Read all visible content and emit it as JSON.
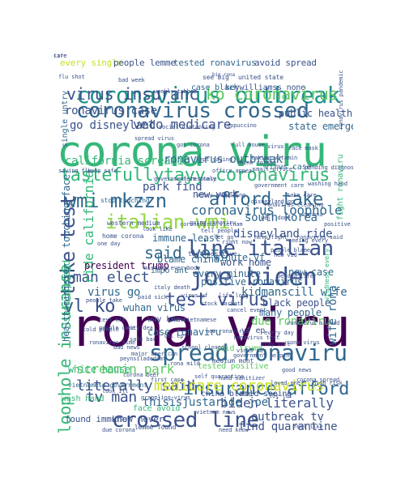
{
  "palette": {
    "dark_purple": "#440154",
    "indigo": "#3b528b",
    "blue": "#31688e",
    "teal": "#21918c",
    "green": "#35b779",
    "light_green": "#5ec962",
    "lime": "#90d743",
    "yellow": "#c8e020"
  },
  "words": [
    {
      "text": "rona viru",
      "color": "#440154"
    },
    {
      "text": "corona viru",
      "color": "#35b779"
    },
    {
      "text": "coronavirus outbreak",
      "color": "#21918c"
    },
    {
      "text": "coronavirus crossed",
      "color": "#31688e"
    },
    {
      "text": "joe biden",
      "color": "#3b528b"
    },
    {
      "text": "spread ronaviru",
      "color": "#31688e"
    },
    {
      "text": "crossed line",
      "color": "#3b528b"
    },
    {
      "text": "tastefullytayy coronavirus",
      "color": "#35b779"
    },
    {
      "text": "wmi mkzzn",
      "color": "#31688e"
    },
    {
      "text": "afford take",
      "color": "#31688e"
    },
    {
      "text": "italian wmi",
      "color": "#90d743"
    },
    {
      "text": "line italian",
      "color": "#3b528b"
    },
    {
      "text": "test virus",
      "color": "#3b528b"
    },
    {
      "text": "take test",
      "color": "#3b528b"
    },
    {
      "text": "loophole insurance",
      "color": "#35b779"
    },
    {
      "text": "insurance afford",
      "color": "#31688e"
    },
    {
      "text": "vl ko",
      "color": "#3b528b"
    },
    {
      "text": "said veto",
      "color": "#31688e"
    },
    {
      "text": "virus insuranc",
      "color": "#3b528b"
    },
    {
      "text": "ko coronavirus",
      "color": "#5ec962"
    },
    {
      "text": "coronavirus loophole",
      "color": "#31688e"
    },
    {
      "text": "literally said",
      "color": "#3b528b"
    },
    {
      "text": "medicare coronavirus",
      "color": "#c8e020"
    },
    {
      "text": "biden literally",
      "color": "#3b528b"
    },
    {
      "text": "thisisjustaride joe",
      "color": "#31688e"
    },
    {
      "text": "veto medicare",
      "color": "#3b528b"
    },
    {
      "text": "go disneyland",
      "color": "#3b528b"
    },
    {
      "text": "california screamin",
      "color": "#35b779"
    },
    {
      "text": "ronavirus outbreak",
      "color": "#31688e"
    },
    {
      "text": "disneyland ride",
      "color": "#3b528b"
    },
    {
      "text": "man elect",
      "color": "#3b528b"
    },
    {
      "text": "virus go",
      "color": "#31688e"
    },
    {
      "text": "screamin park",
      "color": "#5ec962"
    },
    {
      "text": "tv man",
      "color": "#3b528b"
    },
    {
      "text": "outbreak tv",
      "color": "#3b528b"
    },
    {
      "text": "find quarantine",
      "color": "#3b528b"
    },
    {
      "text": "case ronaviru",
      "color": "#31688e"
    },
    {
      "text": "kidmanscill wife",
      "color": "#31688e"
    },
    {
      "text": "wife rona",
      "color": "#31688e"
    },
    {
      "text": "due ronaviru",
      "color": "#5ec962"
    },
    {
      "text": "new york",
      "color": "#3b528b"
    },
    {
      "text": "south korea",
      "color": "#31688e"
    },
    {
      "text": "park find",
      "color": "#3b528b"
    },
    {
      "text": "ride california",
      "color": "#35b779"
    },
    {
      "text": "ronavirus case",
      "color": "#3b528b"
    },
    {
      "text": "public health",
      "color": "#3b528b"
    },
    {
      "text": "state emergency",
      "color": "#31688e"
    },
    {
      "text": "president trump",
      "color": "#440154"
    },
    {
      "text": "black people",
      "color": "#3b528b"
    },
    {
      "text": "new case",
      "color": "#31688e"
    },
    {
      "text": "work home",
      "color": "#3b528b"
    },
    {
      "text": "positive ronavirus",
      "color": "#31688e"
    },
    {
      "text": "white house",
      "color": "#35b779"
    },
    {
      "text": "wuhan virus",
      "color": "#31688e"
    },
    {
      "text": "blame china",
      "color": "#31688e"
    },
    {
      "text": "immune least",
      "color": "#31688e"
    },
    {
      "text": "stop spread",
      "color": "#35b779"
    },
    {
      "text": "touching face",
      "color": "#31688e"
    },
    {
      "text": "health minister",
      "color": "#31688e"
    },
    {
      "text": "every minute",
      "color": "#31688e"
    },
    {
      "text": "minute yf",
      "color": "#31688e"
    },
    {
      "text": "many people",
      "color": "#31688e"
    },
    {
      "text": "every single",
      "color": "#c8e020"
    },
    {
      "text": "people lemme",
      "color": "#3b528b"
    },
    {
      "text": "tested ronavirus",
      "color": "#31688e"
    },
    {
      "text": "avoid spread",
      "color": "#3b528b"
    },
    {
      "text": "keywilliamss none",
      "color": "#3b528b"
    },
    {
      "text": "case black",
      "color": "#31688e"
    },
    {
      "text": "virus case",
      "color": "#31688e"
    },
    {
      "text": "found immune",
      "color": "#3b528b"
    },
    {
      "text": "know never",
      "color": "#3b528b"
    },
    {
      "text": "china blame",
      "color": "#3b528b"
    },
    {
      "text": "mild seeing",
      "color": "#3b528b"
    },
    {
      "text": "wash hand",
      "color": "#35b779"
    },
    {
      "text": "face avoid",
      "color": "#35b779"
    },
    {
      "text": "least god",
      "color": "#31688e"
    },
    {
      "text": "leppuccino stop",
      "color": "#3b528b"
    },
    {
      "text": "daviddtss lol",
      "color": "#3b528b"
    },
    {
      "text": "tested positive",
      "color": "#5ec962"
    },
    {
      "text": "single untry",
      "color": "#31688e"
    },
    {
      "text": "way know",
      "color": "#3b528b"
    },
    {
      "text": "yf ep",
      "color": "#3b528b"
    },
    {
      "text": "impo ant",
      "color": "#31688e"
    },
    {
      "text": "said trump",
      "color": "#5ec962"
    },
    {
      "text": "fight ronaviru",
      "color": "#35b779"
    },
    {
      "text": "vietnamese government",
      "color": "#31688e"
    },
    {
      "text": "wildness every",
      "color": "#35b779"
    },
    {
      "text": "breaking new",
      "color": "#3b528b"
    },
    {
      "text": "lemme found",
      "color": "#3b528b"
    },
    {
      "text": "dr kelly",
      "color": "#3b528b"
    },
    {
      "text": "stop touching",
      "color": "#31688e"
    },
    {
      "text": "home corona",
      "color": "#3b528b"
    },
    {
      "text": "test positive",
      "color": "#3b528b"
    },
    {
      "text": "western medium",
      "color": "#3b528b"
    },
    {
      "text": "united state",
      "color": "#3b528b"
    },
    {
      "text": "see big",
      "color": "#3b528b"
    },
    {
      "text": "saying flu",
      "color": "#3b528b"
    },
    {
      "text": "government response",
      "color": "#3b528b"
    },
    {
      "text": "medium mont",
      "color": "#3b528b"
    },
    {
      "text": "government helping",
      "color": "#3b528b"
    },
    {
      "text": "fighting corona",
      "color": "#3b528b"
    },
    {
      "text": "vietnam news",
      "color": "#3b528b"
    },
    {
      "text": "everybody boy",
      "color": "#3b528b"
    },
    {
      "text": "ronavirus offering",
      "color": "#3b528b"
    },
    {
      "text": "big rona",
      "color": "#3b528b"
    },
    {
      "text": "ronavirus peynsiladedcat western",
      "color": "#3b528b"
    },
    {
      "text": "seeing every",
      "color": "#3b528b"
    },
    {
      "text": "ronavirus pandemic",
      "color": "#3b528b"
    },
    {
      "text": "ronavirus cleaning",
      "color": "#3b528b"
    },
    {
      "text": "virus pay",
      "color": "#3b528b"
    },
    {
      "text": "lot lol",
      "color": "#3b528b"
    },
    {
      "text": "safe bar",
      "color": "#3b528b"
    },
    {
      "text": "major american",
      "color": "#3b528b"
    },
    {
      "text": "good news",
      "color": "#3b528b"
    },
    {
      "text": "flu shot",
      "color": "#3b528b"
    },
    {
      "text": "bad week",
      "color": "#3b528b"
    },
    {
      "text": "weekly tabbed",
      "color": "#3b528b"
    },
    {
      "text": "disneyland go",
      "color": "#3b528b"
    },
    {
      "text": "ferm italy",
      "color": "#3b528b"
    },
    {
      "text": "pending diagnosis",
      "color": "#3b528b"
    },
    {
      "text": "taking vitamin",
      "color": "#3b528b"
    },
    {
      "text": "kept saying",
      "color": "#3b528b"
    },
    {
      "text": "office appeal",
      "color": "#3b528b"
    },
    {
      "text": "small office",
      "color": "#3b528b"
    },
    {
      "text": "paid sick",
      "color": "#3b528b"
    },
    {
      "text": "look ill",
      "color": "#3b528b"
    },
    {
      "text": "grappling virus",
      "color": "#3b528b"
    },
    {
      "text": "untry grappling",
      "color": "#3b528b"
    },
    {
      "text": "mistake everybody",
      "color": "#3b528b"
    },
    {
      "text": "italy death",
      "color": "#3b528b"
    },
    {
      "text": "virus yf",
      "color": "#3b528b"
    },
    {
      "text": "people come",
      "color": "#3b528b"
    },
    {
      "text": "city dea",
      "color": "#3b528b"
    },
    {
      "text": "lol ep",
      "color": "#3b528b"
    },
    {
      "text": "new vid",
      "color": "#3b528b"
    },
    {
      "text": "beyond life",
      "color": "#3b528b"
    },
    {
      "text": "ronavirus spread",
      "color": "#3b528b"
    },
    {
      "text": "corona spread",
      "color": "#3b528b"
    },
    {
      "text": "loved one",
      "color": "#3b528b"
    },
    {
      "text": "hand sanitizer",
      "color": "#3b528b"
    },
    {
      "text": "test kit",
      "color": "#3b528b"
    },
    {
      "text": "take vietnamese",
      "color": "#3b528b"
    },
    {
      "text": "cancel event",
      "color": "#3b528b"
    },
    {
      "text": "help fight",
      "color": "#3b528b"
    },
    {
      "text": "one day",
      "color": "#3b528b"
    },
    {
      "text": "look like",
      "color": "#3b528b"
    },
    {
      "text": "ronavirus said",
      "color": "#3b528b"
    },
    {
      "text": "people take",
      "color": "#3b528b"
    },
    {
      "text": "going ronaviru",
      "color": "#3b528b"
    },
    {
      "text": "let go",
      "color": "#3b528b"
    },
    {
      "text": "well done",
      "color": "#3b528b"
    },
    {
      "text": "bad news",
      "color": "#3b528b"
    },
    {
      "text": "rona mild",
      "color": "#3b528b"
    },
    {
      "text": "people blame",
      "color": "#3b528b"
    },
    {
      "text": "leppuccino",
      "color": "#3b528b"
    },
    {
      "text": "social distancing",
      "color": "#3b528b"
    },
    {
      "text": "washing hand",
      "color": "#3b528b"
    },
    {
      "text": "government care",
      "color": "#3b528b"
    },
    {
      "text": "school closed",
      "color": "#3b528b"
    },
    {
      "text": "stay safe",
      "color": "#3b528b"
    },
    {
      "text": "peynsiladedcat",
      "color": "#3b528b"
    },
    {
      "text": "stock market",
      "color": "#3b528b"
    },
    {
      "text": "every day",
      "color": "#3b528b"
    },
    {
      "text": "life long",
      "color": "#3b528b"
    },
    {
      "text": "high risk",
      "color": "#3b528b"
    },
    {
      "text": "death toll",
      "color": "#3b528b"
    },
    {
      "text": "due corona",
      "color": "#3b528b"
    },
    {
      "text": "feel like",
      "color": "#3b528b"
    },
    {
      "text": "right now",
      "color": "#3b528b"
    },
    {
      "text": "ronavirus time",
      "color": "#3b528b"
    },
    {
      "text": "coronavirus vietnam",
      "color": "#3b528b"
    },
    {
      "text": "tell people",
      "color": "#3b528b"
    },
    {
      "text": "take care",
      "color": "#3b528b"
    },
    {
      "text": "need know",
      "color": "#3b528b"
    },
    {
      "text": "last week",
      "color": "#3b528b"
    },
    {
      "text": "corona beer",
      "color": "#3b528b"
    },
    {
      "text": "first case",
      "color": "#3b528b"
    },
    {
      "text": "think corona",
      "color": "#3b528b"
    },
    {
      "text": "keep safe",
      "color": "#3b528b"
    },
    {
      "text": "self quarantine",
      "color": "#3b528b"
    },
    {
      "text": "spread virus",
      "color": "#3b528b"
    },
    {
      "text": "got corona",
      "color": "#3b528b"
    },
    {
      "text": "full house",
      "color": "#3b528b"
    },
    {
      "text": "face mask",
      "color": "#3b528b"
    },
    {
      "text": "told people",
      "color": "#3b528b"
    },
    {
      "text": "new ronavirus",
      "color": "#3b528b"
    },
    {
      "text": "ronavirus test",
      "color": "#3b528b"
    },
    {
      "text": "ronavirus italy",
      "color": "#3b528b"
    },
    {
      "text": "rona virus",
      "color": "#3b528b"
    },
    {
      "text": "medium",
      "color": "#3b528b"
    },
    {
      "text": "virus",
      "color": "#3b528b"
    },
    {
      "text": "corona",
      "color": "#3b528b"
    },
    {
      "text": "positive",
      "color": "#3b528b"
    },
    {
      "text": "care",
      "color": "#3b528b"
    },
    {
      "text": "life",
      "color": "#3b528b"
    }
  ]
}
